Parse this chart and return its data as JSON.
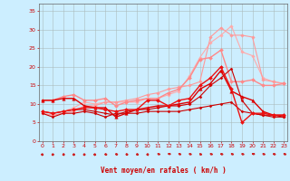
{
  "xlabel": "Vent moyen/en rafales ( km/h )",
  "background_color": "#cceeff",
  "grid_color": "#aabbbb",
  "x_ticks": [
    0,
    1,
    2,
    3,
    4,
    5,
    6,
    7,
    8,
    9,
    10,
    11,
    12,
    13,
    14,
    15,
    16,
    17,
    18,
    19,
    20,
    21,
    22,
    23
  ],
  "y_ticks": [
    0,
    5,
    10,
    15,
    20,
    25,
    30,
    35
  ],
  "ylim": [
    0,
    37
  ],
  "xlim": [
    -0.3,
    23.3
  ],
  "series": [
    {
      "x": [
        0,
        1,
        2,
        3,
        4,
        5,
        6,
        7,
        8,
        9,
        10,
        11,
        12,
        13,
        14,
        15,
        16,
        17,
        18,
        19,
        20,
        21,
        22,
        23
      ],
      "y": [
        7.5,
        6.5,
        7.5,
        7.5,
        8.0,
        7.5,
        6.5,
        7.5,
        7.5,
        7.5,
        8.0,
        8.0,
        8.0,
        8.0,
        8.5,
        9.0,
        9.5,
        10.0,
        10.5,
        8.0,
        7.5,
        7.0,
        7.0,
        6.5
      ],
      "color": "#cc0000",
      "lw": 0.8,
      "marker": "D",
      "ms": 1.5,
      "zorder": 5
    },
    {
      "x": [
        0,
        1,
        2,
        3,
        4,
        5,
        6,
        7,
        8,
        9,
        10,
        11,
        12,
        13,
        14,
        15,
        16,
        17,
        18,
        19,
        20,
        21,
        22,
        23
      ],
      "y": [
        8.0,
        7.5,
        8.0,
        8.5,
        8.5,
        8.0,
        7.5,
        7.0,
        8.0,
        8.5,
        8.5,
        9.0,
        9.5,
        9.5,
        10.0,
        12.0,
        15.0,
        17.0,
        19.5,
        11.0,
        7.5,
        7.0,
        6.5,
        6.5
      ],
      "color": "#cc0000",
      "lw": 0.8,
      "marker": "D",
      "ms": 1.5,
      "zorder": 5
    },
    {
      "x": [
        0,
        1,
        2,
        3,
        4,
        5,
        6,
        7,
        8,
        9,
        10,
        11,
        12,
        13,
        14,
        15,
        16,
        17,
        18,
        19,
        20,
        21,
        22,
        23
      ],
      "y": [
        11.0,
        11.0,
        11.5,
        11.5,
        9.5,
        9.0,
        9.0,
        6.5,
        7.5,
        8.5,
        9.0,
        9.5,
        9.5,
        10.0,
        10.5,
        14.0,
        15.5,
        19.0,
        13.5,
        12.0,
        11.0,
        8.0,
        7.0,
        7.0
      ],
      "color": "#dd0000",
      "lw": 1.0,
      "marker": "^",
      "ms": 2.5,
      "zorder": 5
    },
    {
      "x": [
        0,
        1,
        2,
        3,
        4,
        5,
        6,
        7,
        8,
        9,
        10,
        11,
        12,
        13,
        14,
        15,
        16,
        17,
        18,
        19,
        20,
        21,
        22,
        23
      ],
      "y": [
        8.0,
        7.5,
        8.0,
        8.5,
        9.0,
        9.0,
        8.5,
        8.0,
        8.5,
        8.5,
        11.0,
        11.0,
        9.5,
        11.0,
        11.5,
        15.0,
        17.0,
        20.0,
        14.0,
        5.0,
        7.5,
        7.5,
        7.0,
        7.0
      ],
      "color": "#ee1111",
      "lw": 1.0,
      "marker": "D",
      "ms": 2.0,
      "zorder": 6
    },
    {
      "x": [
        0,
        1,
        2,
        3,
        4,
        5,
        6,
        7,
        8,
        9,
        10,
        11,
        12,
        13,
        14,
        15,
        16,
        17,
        18,
        19,
        20,
        21,
        22,
        23
      ],
      "y": [
        11.0,
        11.0,
        12.0,
        12.5,
        11.0,
        11.0,
        11.5,
        9.5,
        10.5,
        11.0,
        11.5,
        11.5,
        13.0,
        14.0,
        17.0,
        22.0,
        22.5,
        24.5,
        16.0,
        16.0,
        16.5,
        15.0,
        15.0,
        15.5
      ],
      "color": "#ff8888",
      "lw": 1.0,
      "marker": "D",
      "ms": 2.0,
      "zorder": 4
    },
    {
      "x": [
        0,
        1,
        2,
        3,
        4,
        5,
        6,
        7,
        8,
        9,
        10,
        11,
        12,
        13,
        14,
        15,
        16,
        17,
        18,
        19,
        20,
        21,
        22,
        23
      ],
      "y": [
        8.0,
        7.5,
        8.0,
        9.0,
        10.5,
        10.0,
        10.5,
        10.5,
        10.5,
        10.5,
        11.5,
        11.5,
        12.5,
        13.5,
        17.5,
        22.5,
        26.5,
        28.5,
        31.0,
        24.0,
        23.0,
        17.0,
        16.0,
        15.5
      ],
      "color": "#ffaaaa",
      "lw": 0.8,
      "marker": "D",
      "ms": 1.8,
      "zorder": 3
    },
    {
      "x": [
        0,
        1,
        2,
        3,
        4,
        5,
        6,
        7,
        8,
        9,
        10,
        11,
        12,
        13,
        14,
        15,
        16,
        17,
        18,
        19,
        20,
        21,
        22,
        23
      ],
      "y": [
        7.5,
        7.0,
        7.5,
        8.0,
        9.5,
        9.5,
        10.5,
        10.5,
        11.0,
        11.5,
        12.5,
        13.0,
        14.0,
        14.5,
        15.0,
        16.0,
        28.0,
        30.5,
        28.5,
        28.5,
        28.0,
        16.5,
        16.0,
        15.5
      ],
      "color": "#ff9999",
      "lw": 0.8,
      "marker": "D",
      "ms": 1.8,
      "zorder": 3
    }
  ],
  "arrow_directions": [
    0,
    0,
    15,
    0,
    0,
    0,
    30,
    45,
    30,
    30,
    15,
    60,
    75,
    60,
    60,
    45,
    60,
    60,
    60,
    60,
    75,
    60,
    60,
    60
  ],
  "arrow_color": "#cc2222"
}
